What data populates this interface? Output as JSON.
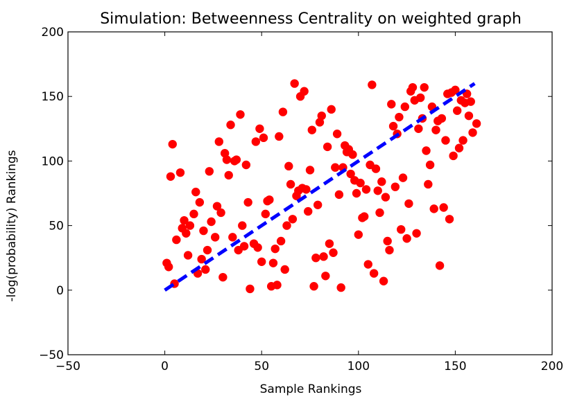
{
  "chart_data": {
    "type": "scatter",
    "title": "Simulation: Betweenness Centrality on weighted graph",
    "xlabel": "Sample Rankings",
    "ylabel": "-log(probability) Rankings",
    "xlim": [
      -50,
      200
    ],
    "ylim": [
      -50,
      200
    ],
    "xticks": [
      -50,
      0,
      50,
      100,
      150,
      200
    ],
    "yticks": [
      -50,
      0,
      50,
      100,
      150,
      200
    ],
    "xtick_labels": [
      "−50",
      "0",
      "50",
      "100",
      "150",
      "200"
    ],
    "ytick_labels": [
      "−50",
      "0",
      "50",
      "100",
      "150",
      "200"
    ],
    "grid": false,
    "colors": {
      "points": "#ff0000",
      "trend": "#0000ff",
      "axes": "#000000"
    },
    "series": [
      {
        "type": "scatter",
        "points": [
          [
            1,
            21
          ],
          [
            2,
            18
          ],
          [
            3,
            88
          ],
          [
            4,
            113
          ],
          [
            5,
            5
          ],
          [
            6,
            39
          ],
          [
            8,
            91
          ],
          [
            9,
            48
          ],
          [
            10,
            54
          ],
          [
            11,
            44
          ],
          [
            12,
            27
          ],
          [
            13,
            50
          ],
          [
            15,
            59
          ],
          [
            16,
            76
          ],
          [
            17,
            13
          ],
          [
            18,
            68
          ],
          [
            19,
            24
          ],
          [
            20,
            46
          ],
          [
            21,
            16
          ],
          [
            22,
            31
          ],
          [
            23,
            92
          ],
          [
            24,
            53
          ],
          [
            26,
            41
          ],
          [
            27,
            65
          ],
          [
            28,
            115
          ],
          [
            29,
            60
          ],
          [
            30,
            10
          ],
          [
            31,
            106
          ],
          [
            32,
            101
          ],
          [
            33,
            89
          ],
          [
            34,
            128
          ],
          [
            35,
            41
          ],
          [
            36,
            100
          ],
          [
            37,
            101
          ],
          [
            38,
            31
          ],
          [
            39,
            136
          ],
          [
            40,
            50
          ],
          [
            41,
            34
          ],
          [
            42,
            97
          ],
          [
            43,
            68
          ],
          [
            44,
            1
          ],
          [
            46,
            36
          ],
          [
            47,
            115
          ],
          [
            48,
            33
          ],
          [
            49,
            125
          ],
          [
            50,
            22
          ],
          [
            51,
            118
          ],
          [
            52,
            59
          ],
          [
            53,
            69
          ],
          [
            54,
            70
          ],
          [
            55,
            3
          ],
          [
            56,
            21
          ],
          [
            57,
            32
          ],
          [
            58,
            4
          ],
          [
            59,
            119
          ],
          [
            60,
            38
          ],
          [
            61,
            138
          ],
          [
            62,
            16
          ],
          [
            63,
            50
          ],
          [
            64,
            96
          ],
          [
            65,
            82
          ],
          [
            66,
            55
          ],
          [
            67,
            160
          ],
          [
            68,
            73
          ],
          [
            69,
            77
          ],
          [
            70,
            150
          ],
          [
            71,
            79
          ],
          [
            72,
            154
          ],
          [
            73,
            78
          ],
          [
            74,
            61
          ],
          [
            75,
            93
          ],
          [
            76,
            124
          ],
          [
            77,
            3
          ],
          [
            78,
            25
          ],
          [
            79,
            66
          ],
          [
            80,
            130
          ],
          [
            81,
            135
          ],
          [
            82,
            26
          ],
          [
            83,
            11
          ],
          [
            84,
            111
          ],
          [
            85,
            36
          ],
          [
            86,
            140
          ],
          [
            87,
            29
          ],
          [
            88,
            95
          ],
          [
            89,
            121
          ],
          [
            90,
            74
          ],
          [
            91,
            2
          ],
          [
            92,
            95
          ],
          [
            93,
            112
          ],
          [
            94,
            107
          ],
          [
            95,
            109
          ],
          [
            96,
            90
          ],
          [
            97,
            105
          ],
          [
            98,
            85
          ],
          [
            99,
            75
          ],
          [
            100,
            43
          ],
          [
            101,
            83
          ],
          [
            102,
            56
          ],
          [
            103,
            57
          ],
          [
            104,
            78
          ],
          [
            105,
            20
          ],
          [
            106,
            97
          ],
          [
            107,
            159
          ],
          [
            108,
            13
          ],
          [
            109,
            94
          ],
          [
            110,
            77
          ],
          [
            111,
            60
          ],
          [
            112,
            84
          ],
          [
            113,
            7
          ],
          [
            114,
            72
          ],
          [
            115,
            38
          ],
          [
            116,
            31
          ],
          [
            117,
            144
          ],
          [
            118,
            127
          ],
          [
            119,
            80
          ],
          [
            120,
            121
          ],
          [
            121,
            134
          ],
          [
            122,
            47
          ],
          [
            123,
            87
          ],
          [
            124,
            142
          ],
          [
            125,
            40
          ],
          [
            126,
            67
          ],
          [
            127,
            154
          ],
          [
            128,
            157
          ],
          [
            129,
            147
          ],
          [
            130,
            44
          ],
          [
            131,
            125
          ],
          [
            132,
            149
          ],
          [
            133,
            133
          ],
          [
            134,
            157
          ],
          [
            135,
            108
          ],
          [
            136,
            82
          ],
          [
            137,
            97
          ],
          [
            138,
            142
          ],
          [
            139,
            63
          ],
          [
            140,
            124
          ],
          [
            141,
            131
          ],
          [
            142,
            19
          ],
          [
            143,
            133
          ],
          [
            144,
            64
          ],
          [
            145,
            116
          ],
          [
            146,
            152
          ],
          [
            147,
            55
          ],
          [
            148,
            153
          ],
          [
            149,
            104
          ],
          [
            150,
            155
          ],
          [
            151,
            139
          ],
          [
            152,
            110
          ],
          [
            153,
            147
          ],
          [
            154,
            116
          ],
          [
            155,
            145
          ],
          [
            156,
            152
          ],
          [
            157,
            135
          ],
          [
            158,
            146
          ],
          [
            159,
            122
          ],
          [
            161,
            129
          ]
        ]
      },
      {
        "type": "line",
        "style": "dashed",
        "points": [
          [
            0,
            0
          ],
          [
            160,
            160
          ]
        ]
      }
    ]
  }
}
